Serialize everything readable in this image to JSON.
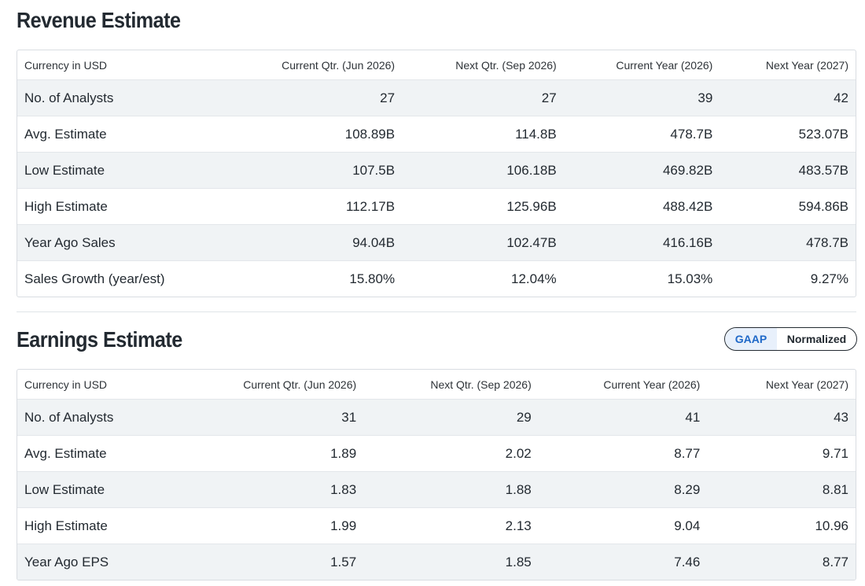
{
  "revenue": {
    "title": "Revenue Estimate",
    "headers": [
      "Currency in USD",
      "Current Qtr. (Jun 2026)",
      "Next Qtr. (Sep 2026)",
      "Current Year (2026)",
      "Next Year (2027)"
    ],
    "rows": [
      [
        "No. of Analysts",
        "27",
        "27",
        "39",
        "42"
      ],
      [
        "Avg. Estimate",
        "108.89B",
        "114.8B",
        "478.7B",
        "523.07B"
      ],
      [
        "Low Estimate",
        "107.5B",
        "106.18B",
        "469.82B",
        "483.57B"
      ],
      [
        "High Estimate",
        "112.17B",
        "125.96B",
        "488.42B",
        "594.86B"
      ],
      [
        "Year Ago Sales",
        "94.04B",
        "102.47B",
        "416.16B",
        "478.7B"
      ],
      [
        "Sales Growth (year/est)",
        "15.80%",
        "12.04%",
        "15.03%",
        "9.27%"
      ]
    ]
  },
  "earnings": {
    "title": "Earnings Estimate",
    "toggle": {
      "active": "GAAP",
      "inactive": "Normalized"
    },
    "headers": [
      "Currency in USD",
      "Current Qtr. (Jun 2026)",
      "Next Qtr. (Sep 2026)",
      "Current Year (2026)",
      "Next Year (2027)"
    ],
    "rows": [
      [
        "No. of Analysts",
        "31",
        "29",
        "41",
        "43"
      ],
      [
        "Avg. Estimate",
        "1.89",
        "2.02",
        "8.77",
        "9.71"
      ],
      [
        "Low Estimate",
        "1.83",
        "1.88",
        "8.29",
        "8.81"
      ],
      [
        "High Estimate",
        "1.99",
        "2.13",
        "9.04",
        "10.96"
      ],
      [
        "Year Ago EPS",
        "1.57",
        "1.85",
        "7.46",
        "8.77"
      ]
    ]
  },
  "colors": {
    "text": "#232a31",
    "shade": "#f0f3f5",
    "border": "#d9dde2",
    "accent": "#1e68c8"
  }
}
